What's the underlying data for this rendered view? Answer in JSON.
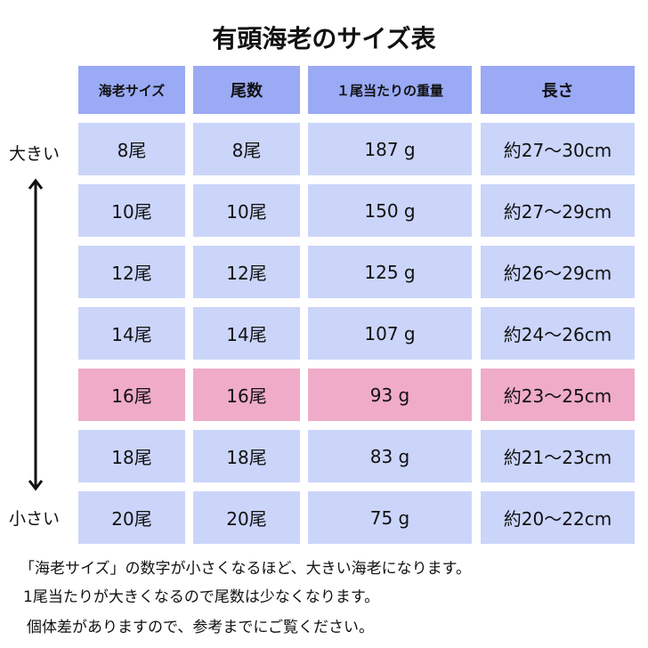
{
  "title": "有頭海老のサイズ表",
  "headers": [
    "海老サイズ",
    "尾数",
    "１尾当たりの重量",
    "長さ"
  ],
  "rows": [
    {
      "size": "8尾",
      "count": "8尾",
      "weight": "187 g",
      "length": "約27〜30cm",
      "highlight": false
    },
    {
      "size": "10尾",
      "count": "10尾",
      "weight": "150 g",
      "length": "約27〜29cm",
      "highlight": false
    },
    {
      "size": "12尾",
      "count": "12尾",
      "weight": "125 g",
      "length": "約26〜29cm",
      "highlight": false
    },
    {
      "size": "14尾",
      "count": "14尾",
      "weight": "107 g",
      "length": "約24〜26cm",
      "highlight": false
    },
    {
      "size": "16尾",
      "count": "16尾",
      "weight": "93 g",
      "length": "約23〜25cm",
      "highlight": true
    },
    {
      "size": "18尾",
      "count": "18尾",
      "weight": "83 g",
      "length": "約21〜23cm",
      "highlight": false
    },
    {
      "size": "20尾",
      "count": "20尾",
      "weight": "75 g",
      "length": "約20〜22cm",
      "highlight": false
    }
  ],
  "side_labels": {
    "top": "大きい",
    "bottom": "小さい"
  },
  "notes": [
    "「海老サイズ」の数字が小さくなるほど、大きい海老になります。",
    "1尾当たりが大きくなるので尾数は少なくなります。",
    "個体差がありますので、参考までにご覧ください。"
  ],
  "colors": {
    "header": "#9aaaf5",
    "cell": "#cbd5fa",
    "highlight": "#f0abc9"
  }
}
